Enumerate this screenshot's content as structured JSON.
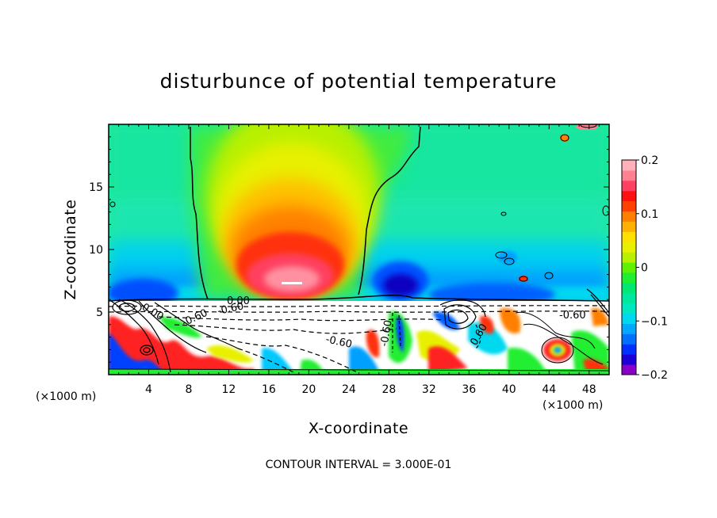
{
  "chart_data": {
    "type": "heatmap",
    "title": "disturbunce of potential temperature",
    "xlabel": "X-coordinate",
    "ylabel": "Z-coordinate",
    "x_unit_left": "(×1000 m)",
    "x_unit_right": "(×1000 m)",
    "x_ticks": [
      "4",
      "8",
      "12",
      "16",
      "20",
      "24",
      "28",
      "32",
      "36",
      "40",
      "44",
      "48"
    ],
    "y_ticks": [
      "5",
      "10",
      "15"
    ],
    "xlim": [
      0,
      50
    ],
    "ylim": [
      0,
      20
    ],
    "colorbar": {
      "range": [
        -0.2,
        0.2
      ],
      "tick_labels": [
        "0.2",
        "0.1",
        "0",
        "−0.1",
        "−0.2"
      ],
      "tick_values": [
        0.2,
        0.1,
        0,
        -0.1,
        -0.2
      ],
      "colors": [
        "#8a00c8",
        "#1c00d8",
        "#0030ff",
        "#0070ff",
        "#00a8ff",
        "#00d8f0",
        "#00e8c0",
        "#00e8a0",
        "#00e870",
        "#20ee30",
        "#60f000",
        "#b8f000",
        "#e8f000",
        "#ffe000",
        "#ffb000",
        "#ff8000",
        "#ff4000",
        "#ff1010",
        "#ff4060",
        "#ff8090",
        "#ffb0b8"
      ]
    },
    "contour_labels": [
      "0.00",
      "-0.60",
      "-0.60",
      "-0.60",
      "-0.60",
      "0.60",
      "-0.60",
      "0.00"
    ],
    "footer": "CONTOUR INTERVAL = 3.000E-01"
  }
}
